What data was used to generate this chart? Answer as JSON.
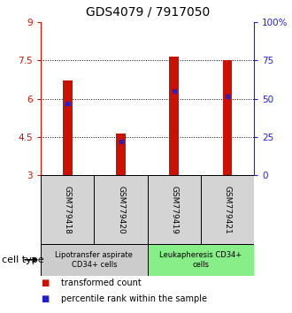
{
  "title": "GDS4079 / 7917050",
  "samples": [
    "GSM779418",
    "GSM779420",
    "GSM779419",
    "GSM779421"
  ],
  "bar_bottom": 3.0,
  "bar_tops": [
    6.72,
    4.63,
    7.63,
    7.52
  ],
  "percentile_values": [
    5.8,
    4.33,
    6.3,
    6.1
  ],
  "ylim_left": [
    3,
    9
  ],
  "ylim_right": [
    0,
    100
  ],
  "yticks_left": [
    3,
    4.5,
    6,
    7.5,
    9
  ],
  "ytick_labels_left": [
    "3",
    "4.5",
    "6",
    "7.5",
    "9"
  ],
  "yticks_right": [
    0,
    25,
    50,
    75,
    100
  ],
  "ytick_labels_right": [
    "0",
    "25",
    "50",
    "75",
    "100%"
  ],
  "grid_lines": [
    4.5,
    6.0,
    7.5
  ],
  "bar_color": "#cc1100",
  "blue_color": "#2222cc",
  "bar_width": 0.18,
  "groups": [
    {
      "label": "Lipotransfer aspirate\nCD34+ cells",
      "indices": [
        0,
        1
      ],
      "color": "#cccccc"
    },
    {
      "label": "Leukapheresis CD34+\ncells",
      "indices": [
        2,
        3
      ],
      "color": "#88ee88"
    }
  ],
  "legend_items": [
    {
      "color": "#cc1100",
      "label": "transformed count"
    },
    {
      "color": "#2222cc",
      "label": "percentile rank within the sample"
    }
  ],
  "cell_type_label": "cell type",
  "title_fontsize": 10,
  "tick_fontsize": 7.5,
  "sample_fontsize": 6.5,
  "group_fontsize": 6,
  "legend_fontsize": 7
}
